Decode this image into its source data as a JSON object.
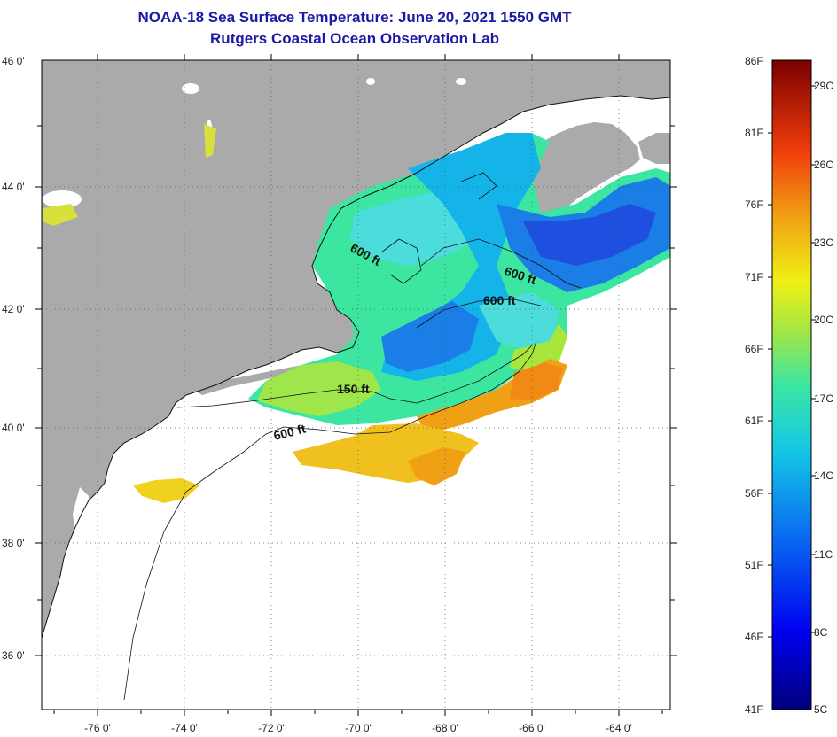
{
  "title": "NOAA-18 Sea Surface Temperature:  June 20, 2021 1550 GMT",
  "subtitle": "Rutgers Coastal Ocean Observation Lab",
  "lat_labels": [
    "46 0'",
    "44 0'",
    "42 0'",
    "40 0'",
    "38 0'",
    "36 0'"
  ],
  "lon_labels": [
    "-76 0'",
    "-74 0'",
    "-72 0'",
    "-70 0'",
    "-68 0'",
    "-66 0'",
    "-64 0'"
  ],
  "contour_labels": [
    "600 ft",
    "600 ft",
    "600 ft",
    "150 ft",
    "600 ft"
  ],
  "colorbar": {
    "fahrenheit_labels": [
      "86F",
      "81F",
      "76F",
      "71F",
      "66F",
      "61F",
      "56F",
      "51F",
      "46F",
      "41F"
    ],
    "celsius_labels": [
      "29C",
      "26C",
      "23C",
      "20C",
      "17C",
      "14C",
      "11C",
      "8C",
      "5C"
    ],
    "min_f": 41,
    "max_f": 86
  },
  "colors": {
    "land": "#aaaaaa",
    "no_data": "#ffffff",
    "title": "#1a1aa6",
    "gulf_of_maine_cold": "#1e4fdf",
    "shelf_warm": "#f08a14"
  }
}
